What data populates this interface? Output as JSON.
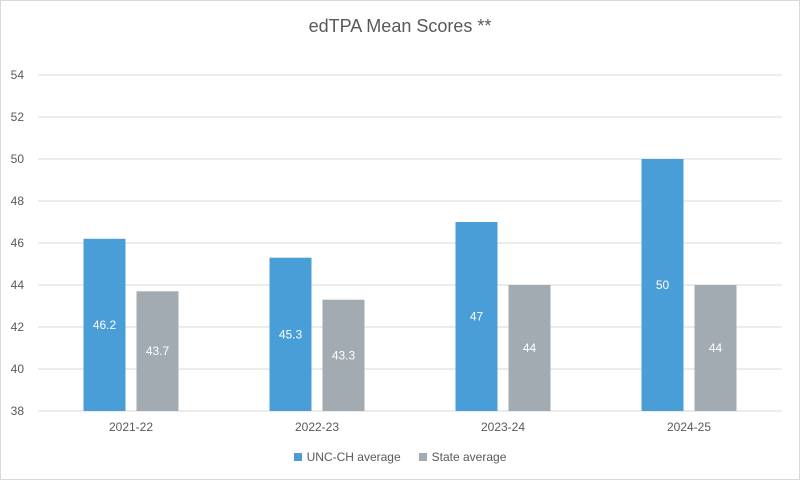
{
  "chart_data": {
    "type": "bar",
    "title": "edTPA Mean Scores **",
    "categories": [
      "2021-22",
      "2022-23",
      "2023-24",
      "2024-25"
    ],
    "series": [
      {
        "name": "UNC-CH average",
        "values": [
          46.2,
          45.3,
          47,
          50
        ],
        "labels": [
          "46.2",
          "45.3",
          "47",
          "50"
        ],
        "color": "#4a9ed8"
      },
      {
        "name": "State average",
        "values": [
          43.7,
          43.3,
          44,
          44
        ],
        "labels": [
          "43.7",
          "43.3",
          "44",
          "44"
        ],
        "color": "#a2abb1"
      }
    ],
    "ylim": [
      38,
      54
    ],
    "yticks": [
      "38",
      "40",
      "42",
      "44",
      "46",
      "48",
      "50",
      "52",
      "54"
    ],
    "grid": true,
    "gridColor": "#d9d9d9",
    "legend": "bottom"
  }
}
